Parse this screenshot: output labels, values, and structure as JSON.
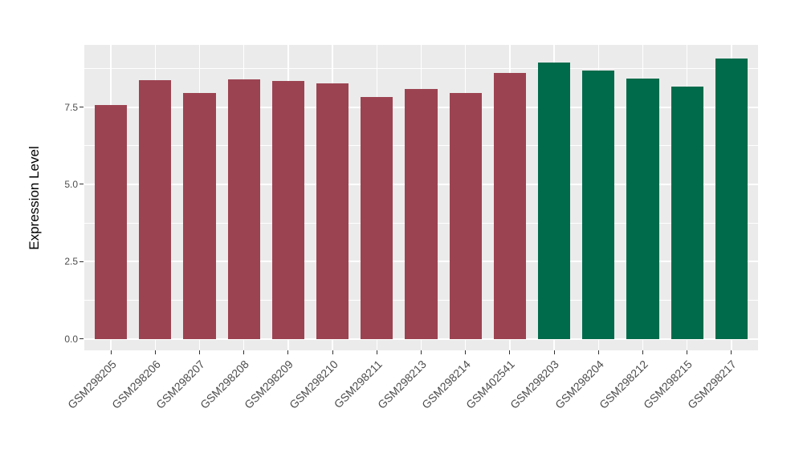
{
  "chart_data": {
    "type": "bar",
    "title": "",
    "xlabel": "",
    "ylabel": "Expression Level",
    "categories": [
      "GSM298205",
      "GSM298206",
      "GSM298207",
      "GSM298208",
      "GSM298209",
      "GSM298210",
      "GSM298211",
      "GSM298213",
      "GSM298214",
      "GSM402541",
      "GSM298203",
      "GSM298204",
      "GSM298212",
      "GSM298215",
      "GSM298217"
    ],
    "values": [
      7.57,
      8.37,
      7.95,
      8.39,
      8.34,
      8.27,
      7.83,
      8.09,
      7.95,
      8.6,
      8.95,
      8.67,
      8.42,
      8.16,
      9.06
    ],
    "groups": [
      "red",
      "red",
      "red",
      "red",
      "red",
      "red",
      "red",
      "red",
      "red",
      "red",
      "green",
      "green",
      "green",
      "green",
      "green"
    ],
    "group_colors": {
      "red": "#9C4351",
      "green": "#006B4A"
    },
    "yticks": [
      0.0,
      2.5,
      5.0,
      7.5
    ],
    "ytick_labels": [
      "0.0",
      "2.5",
      "5.0",
      "7.5"
    ],
    "yticks_minor": [
      1.25,
      3.75,
      6.25,
      8.75
    ],
    "ylim": [
      -0.37,
      9.51
    ],
    "x_expand": 0.6,
    "bar_width_frac": 0.73,
    "grid": "white major+minor horizontal lines, white vertical lines at category centers",
    "legend": "none",
    "panel_background": "#EBEBEB",
    "gridline_color": "#FFFFFF",
    "axis_text_color": "#4D4D4D",
    "axis_title_color": "#000000",
    "tick_mark_color": "#333333"
  }
}
